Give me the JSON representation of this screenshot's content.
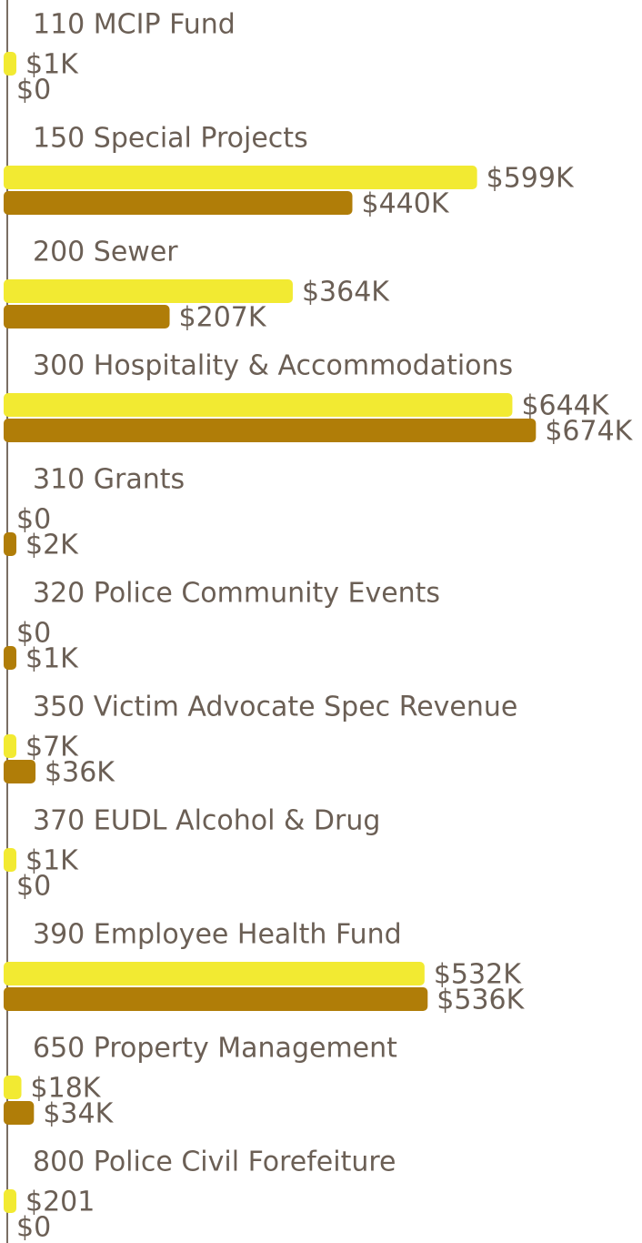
{
  "chart_data": {
    "type": "bar",
    "orientation": "horizontal",
    "categories": [
      "110 MCIP Fund",
      "150 Special Projects",
      "200 Sewer",
      "300 Hospitality & Accommodations",
      "310 Grants",
      "320 Police Community Events",
      "350 Victim Advocate Spec Revenue",
      "370 EUDL Alcohol & Drug",
      "390 Employee Health Fund",
      "650 Property Management",
      "800 Police Civil Forefeiture"
    ],
    "xlim": [
      0,
      800000
    ],
    "series": [
      {
        "color": "#f2ea32",
        "values": [
          1000,
          599000,
          364000,
          644000,
          0,
          0,
          7000,
          1000,
          532000,
          18000,
          201
        ],
        "value_labels": [
          "$1K",
          "$599K",
          "$364K",
          "$644K",
          "$0",
          "$0",
          "$7K",
          "$1K",
          "$532K",
          "$18K",
          "$201"
        ]
      },
      {
        "color": "#b07d08",
        "values": [
          0,
          440000,
          207000,
          674000,
          2000,
          1000,
          36000,
          0,
          536000,
          34000,
          0
        ],
        "value_labels": [
          "$0",
          "$440K",
          "$207K",
          "$674K",
          "$2K",
          "$1K",
          "$36K",
          "$0",
          "$536K",
          "$34K",
          "$0"
        ]
      }
    ]
  }
}
